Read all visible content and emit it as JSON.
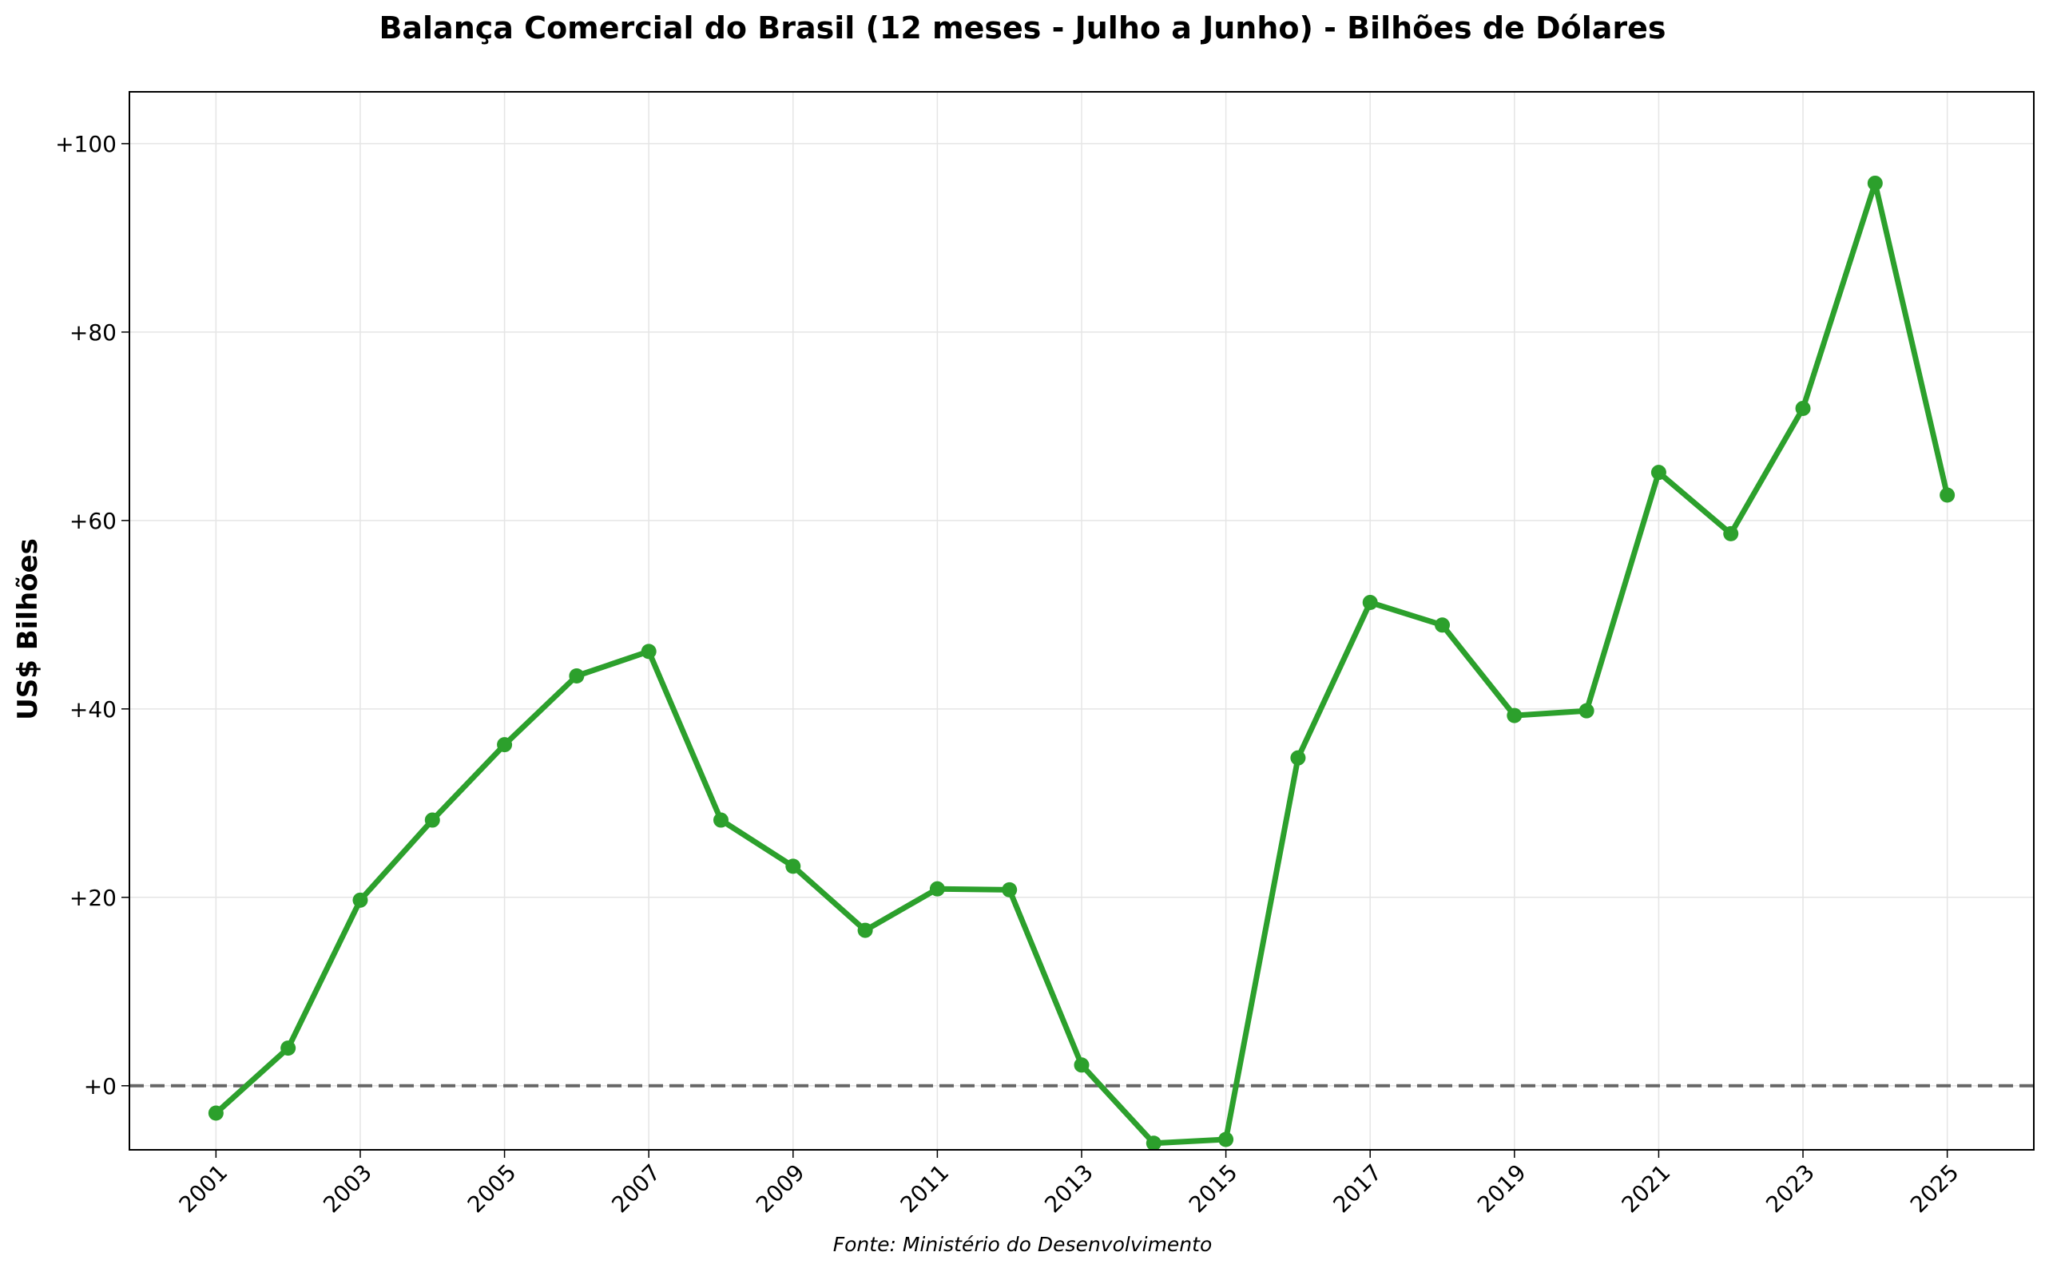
{
  "chart_data": {
    "type": "line",
    "title": "Balança Comercial do Brasil (12 meses - Julho a Junho) - Bilhões de Dólares",
    "xlabel": "",
    "ylabel": "US$ Bilhões",
    "source": "Fonte: Ministério do Desenvolvimento",
    "x": [
      2001,
      2002,
      2003,
      2004,
      2005,
      2006,
      2007,
      2008,
      2009,
      2010,
      2011,
      2012,
      2013,
      2014,
      2015,
      2016,
      2017,
      2018,
      2019,
      2020,
      2021,
      2022,
      2023,
      2024,
      2025
    ],
    "series": [
      {
        "values": [
          -2.9,
          4.0,
          19.7,
          28.2,
          36.2,
          43.5,
          46.1,
          28.2,
          23.3,
          16.5,
          20.9,
          20.8,
          2.2,
          -6.1,
          -5.7,
          34.8,
          51.3,
          48.9,
          39.3,
          39.8,
          65.1,
          58.6,
          71.9,
          95.8,
          62.7
        ]
      }
    ],
    "xlim": [
      1999.8,
      2026.2
    ],
    "ylim": [
      -6.8,
      105.5
    ],
    "xticks": [
      2001,
      2003,
      2005,
      2007,
      2009,
      2011,
      2013,
      2015,
      2017,
      2019,
      2021,
      2023,
      2025
    ],
    "xtick_labels": [
      "2001",
      "2003",
      "2005",
      "2007",
      "2009",
      "2011",
      "2013",
      "2015",
      "2017",
      "2019",
      "2021",
      "2023",
      "2025"
    ],
    "yticks": [
      0,
      20,
      40,
      60,
      80,
      100
    ],
    "ytick_labels": [
      "+0",
      "+20",
      "+40",
      "+60",
      "+80",
      "+100"
    ],
    "reference_line": {
      "y": 0,
      "style": "dashed",
      "color": "#666666"
    },
    "line_color": "#2ca02c",
    "grid": true,
    "legend": false
  }
}
